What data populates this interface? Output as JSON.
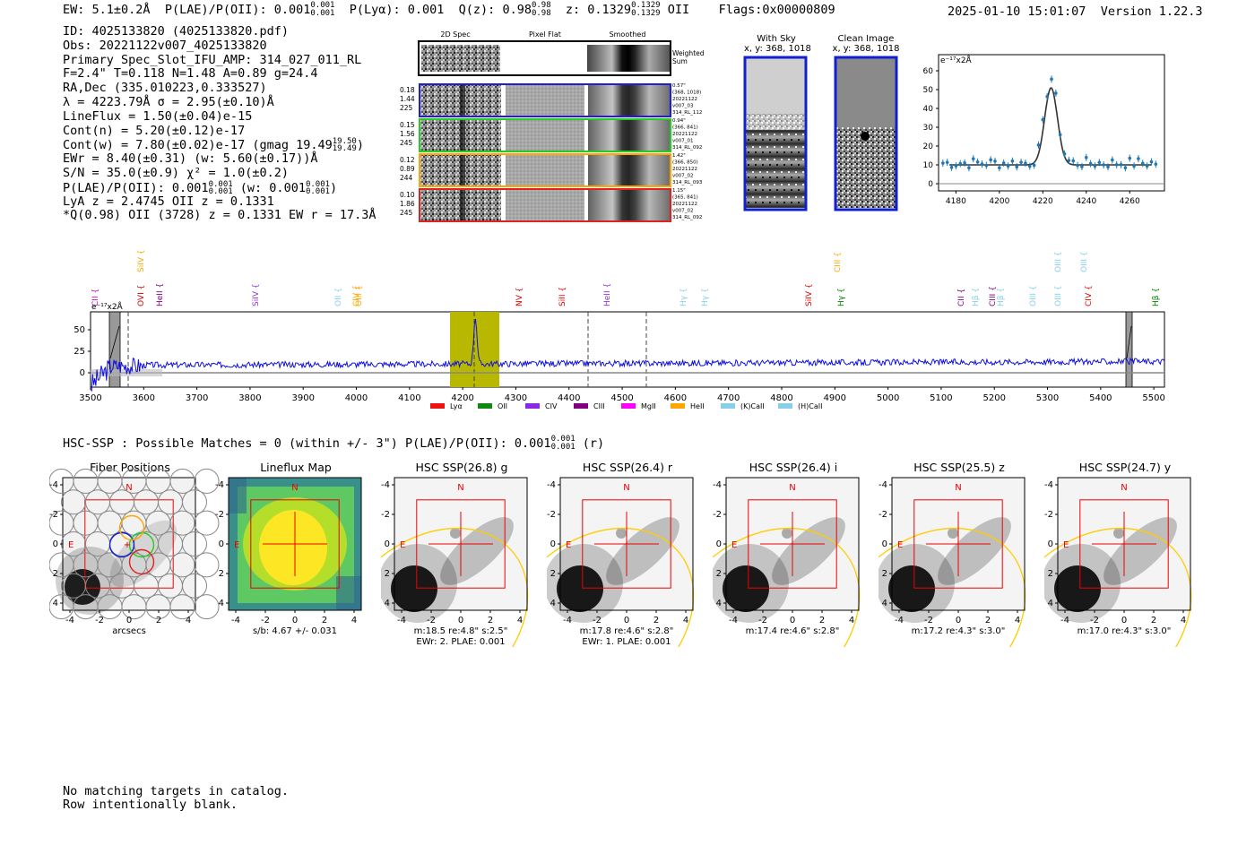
{
  "header": {
    "ew": "EW: 5.1±0.2Å",
    "plae": "P(LAE)/P(OII): 0.001",
    "plae_sup": "0.001",
    "plae_sub": "0.001",
    "plya": "P(Lyα): 0.001",
    "qz": "Q(z): 0.98",
    "qz_sup": "0.98",
    "qz_sub": "0.98",
    "z": "z: 0.1329",
    "z_sup": "0.1329",
    "z_sub": "0.1329",
    "z_line": "OII",
    "flags": "Flags:0x00000809",
    "datetime": "2025-01-10 15:01:07",
    "version": "Version 1.22.3"
  },
  "info": {
    "id": "ID: 4025133820 (4025133820.pdf)",
    "obs": "Obs: 20221122v007_4025133820",
    "primary": "Primary Spec_Slot_IFU_AMP: 314_027_011_RL",
    "fiber": "F=2.4\"  T=0.118  N=1.48  A=0.89  g=24.4",
    "radec": "RA,Dec (335.010223,0.333527)",
    "lambda": "λ = 4223.79Å   σ = 2.95(±0.10)Å",
    "lineflux": "LineFlux = 1.50(±0.04)e-15",
    "contn": "Cont(n) = 5.20(±0.12)e-17",
    "contw": "Cont(w) = 7.80(±0.02)e-17 (gmag 19.49",
    "contw_sup": "19.50",
    "contw_sub": "19.49",
    "ewr": "EWr = 8.40(±0.31) (w: 5.60(±0.17))Å",
    "sn": "S/N = 35.0(±0.9)  χ² = 1.0(±0.2)",
    "plae": "P(LAE)/P(OII): 0.001",
    "plae_w": "(w: 0.001",
    "lya": "LyA z = 2.4745   OII z = 0.1331",
    "q": "*Q(0.98) OII (3728) z = 0.1331   EW r = 17.3Å"
  },
  "cutouts": {
    "col_headers": [
      "2D Spec",
      "Pixel Flat",
      "Smoothed"
    ],
    "weighted_label": "Weighted Sum",
    "rows": [
      {
        "vals": [
          "0.18",
          "1.44",
          "225"
        ],
        "color": "#1f1fd0",
        "meta": [
          "0.57\"",
          "(368, 1018)",
          "20221122",
          "v007_03",
          "314_RL_112"
        ]
      },
      {
        "vals": [
          "0.15",
          "1.56",
          "245"
        ],
        "color": "#22cc22",
        "meta": [
          "0.94\"",
          "(366, 841)",
          "20221122",
          "v007_01",
          "314_RL_092"
        ]
      },
      {
        "vals": [
          "0.12",
          "0.89",
          "244"
        ],
        "color": "#ffa500",
        "meta": [
          "1.42\"",
          "(366, 850)",
          "20221122",
          "v007_02",
          "314_RL_093"
        ]
      },
      {
        "vals": [
          "0.10",
          "1.86",
          "245"
        ],
        "color": "#dd2222",
        "meta": [
          "1.15\"",
          "(365, 841)",
          "20221122",
          "v007_02",
          "314_RL_092"
        ]
      }
    ]
  },
  "sky_panels": {
    "with_sky": "With Sky",
    "with_sky_xy": "x, y: 368, 1018",
    "clean": "Clean Image",
    "clean_xy": "x, y: 368, 1018"
  },
  "zoom_plot": {
    "unit_label": "e⁻¹⁷x2Å",
    "x_ticks": [
      "4180",
      "4200",
      "4220",
      "4240",
      "4260"
    ],
    "y_ticks": [
      "0",
      "10",
      "20",
      "30",
      "40",
      "50",
      "60"
    ]
  },
  "spectrum": {
    "unit_label": "e⁻¹⁷x2Å",
    "x_ticks": [
      "3500",
      "3600",
      "3700",
      "3800",
      "3900",
      "4000",
      "4100",
      "4200",
      "4300",
      "4400",
      "4500",
      "4600",
      "4700",
      "4800",
      "4900",
      "5000",
      "5100",
      "5200",
      "5300",
      "5400",
      "5500"
    ],
    "y_ticks": [
      "0",
      "25",
      "50"
    ],
    "line_labels_low": [
      {
        "t": "CII",
        "c": "#d000d0"
      },
      {
        "t": "OVI",
        "c": "#d00000"
      },
      {
        "t": "HeII",
        "c": "#800080"
      },
      {
        "t": "SiIV",
        "c": "#9030e0"
      },
      {
        "t": "OII",
        "c": "#87ceeb"
      },
      {
        "t": "CIV",
        "c": "#ffa500"
      },
      {
        "t": "OIII",
        "c": "#ffa500"
      },
      {
        "t": "NV",
        "c": "#e00000"
      },
      {
        "t": "SiII",
        "c": "#e00000"
      },
      {
        "t": "HeII",
        "c": "#9030e0"
      },
      {
        "t": "Hγ",
        "c": "#87ceeb"
      },
      {
        "t": "Hγ",
        "c": "#87ceeb"
      },
      {
        "t": "SiIV",
        "c": "#e00000"
      },
      {
        "t": "Hγ",
        "c": "#008000"
      },
      {
        "t": "CII",
        "c": "#800080"
      },
      {
        "t": "Hβ",
        "c": "#87ceeb"
      },
      {
        "t": "CIII",
        "c": "#800080"
      },
      {
        "t": "Hβ",
        "c": "#87ceeb"
      },
      {
        "t": "OIII",
        "c": "#87ceeb"
      },
      {
        "t": "OIII",
        "c": "#87ceeb"
      },
      {
        "t": "CIV",
        "c": "#e00000"
      },
      {
        "t": "Hβ",
        "c": "#008000"
      }
    ],
    "line_labels_high": [
      {
        "t": "SiIV",
        "c": "#ffa500"
      },
      {
        "t": "CIII",
        "c": "#ffa500"
      },
      {
        "t": "OIII",
        "c": "#87ceeb"
      },
      {
        "t": "OIII",
        "c": "#87ceeb"
      }
    ],
    "legend": [
      {
        "t": "Lyα",
        "c": "#ee1111"
      },
      {
        "t": "OII",
        "c": "#118811"
      },
      {
        "t": "CIV",
        "c": "#8a2be2"
      },
      {
        "t": "CIII",
        "c": "#800080"
      },
      {
        "t": "MgII",
        "c": "#ff00ff"
      },
      {
        "t": "HeII",
        "c": "#ffa500"
      },
      {
        "t": "(K)CaII",
        "c": "#87ceeb"
      },
      {
        "t": "(H)CaII",
        "c": "#87ceeb"
      }
    ]
  },
  "hsc": {
    "line": "HSC-SSP : Possible Matches = 0 (within +/- 3\")  P(LAE)/P(OII): 0.001",
    "sup": "0.001",
    "sub": "0.001",
    "band": "(r)"
  },
  "thumbs": [
    {
      "title": "Fiber Positions",
      "cap1": "arcsecs",
      "cap2": ""
    },
    {
      "title": "Lineflux Map",
      "cap1": "s/b: 4.67 +/- 0.031",
      "cap2": ""
    },
    {
      "title": "HSC SSP(26.8) g",
      "cap1": "m:18.5   re:4.8\"   s:2.5\"",
      "cap2": "EWr: 2. PLAE: 0.001"
    },
    {
      "title": "HSC SSP(26.4) r",
      "cap1": "m:17.8   re:4.6\"   s:2.8\"",
      "cap2": "EWr: 1. PLAE: 0.001"
    },
    {
      "title": "HSC SSP(26.4) i",
      "cap1": "m:17.4   re:4.6\"   s:2.8\"",
      "cap2": ""
    },
    {
      "title": "HSC SSP(25.5) z",
      "cap1": "m:17.2   re:4.3\"   s:3.0\"",
      "cap2": ""
    },
    {
      "title": "HSC SSP(24.7) y",
      "cap1": "m:17.0   re:4.3\"   s:3.0\"",
      "cap2": ""
    }
  ],
  "thumb_axes": {
    "ticks": [
      "-4",
      "-2",
      "0",
      "2",
      "4"
    ],
    "n_label": "N",
    "e_label": "E"
  },
  "footer": {
    "line1": "No matching targets in catalog.",
    "line2": "Row intentionally blank."
  }
}
